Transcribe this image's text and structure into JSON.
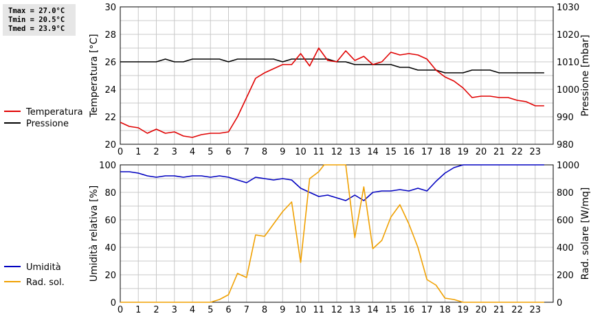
{
  "stats": {
    "tmax": "Tmax = 27.0°C",
    "tmin": "Tmin = 20.5°C",
    "tmed": "Tmed = 23.9°C"
  },
  "colors": {
    "temperature": "#e00000",
    "pressure": "#000000",
    "humidity": "#0000c0",
    "radiation": "#f0a000",
    "grid": "#c8c8c8"
  },
  "chart_data": [
    {
      "type": "line",
      "x_ticks": [
        "0",
        "1",
        "2",
        "3",
        "4",
        "5",
        "6",
        "7",
        "8",
        "9",
        "10",
        "11",
        "12",
        "13",
        "14",
        "15",
        "16",
        "17",
        "18",
        "19",
        "20",
        "21",
        "22",
        "23"
      ],
      "xlim": [
        0,
        24
      ],
      "ylabel": "Temperatura [°C]",
      "ylim": [
        20,
        30
      ],
      "y_ticks": [
        "20",
        "22",
        "24",
        "26",
        "28",
        "30"
      ],
      "ylabel_right": "Pressione [mbar]",
      "ylim_right": [
        980,
        1030
      ],
      "y_ticks_right": [
        "980",
        "990",
        "1000",
        "1010",
        "1020",
        "1030"
      ],
      "grid": true,
      "legend_position": "left",
      "series": [
        {
          "name": "Temperatura",
          "axis": "left",
          "x": [
            0,
            0.5,
            1,
            1.5,
            2,
            2.5,
            3,
            3.5,
            4,
            4.5,
            5,
            5.5,
            6,
            6.5,
            7,
            7.5,
            8,
            8.5,
            9,
            9.5,
            10,
            10.5,
            11,
            11.5,
            12,
            12.5,
            13,
            13.5,
            14,
            14.5,
            15,
            15.5,
            16,
            16.5,
            17,
            17.5,
            18,
            18.5,
            19,
            19.5,
            20,
            20.5,
            21,
            21.5,
            22,
            22.5,
            23,
            23.5
          ],
          "y": [
            21.6,
            21.3,
            21.2,
            20.8,
            21.1,
            20.8,
            20.9,
            20.6,
            20.5,
            20.7,
            20.8,
            20.8,
            20.9,
            22.0,
            23.4,
            24.8,
            25.2,
            25.5,
            25.8,
            25.8,
            26.6,
            25.7,
            27.0,
            26.1,
            26.0,
            26.8,
            26.1,
            26.4,
            25.8,
            26.0,
            26.7,
            26.5,
            26.6,
            26.5,
            26.2,
            25.4,
            24.9,
            24.6,
            24.1,
            23.4,
            23.5,
            23.5,
            23.4,
            23.4,
            23.2,
            23.1,
            22.8,
            22.8
          ]
        },
        {
          "name": "Pressione",
          "axis": "right",
          "x": [
            0,
            0.5,
            1,
            1.5,
            2,
            2.5,
            3,
            3.5,
            4,
            4.5,
            5,
            5.5,
            6,
            6.5,
            7,
            7.5,
            8,
            8.5,
            9,
            9.5,
            10,
            10.5,
            11,
            11.5,
            12,
            12.5,
            13,
            13.5,
            14,
            14.5,
            15,
            15.5,
            16,
            16.5,
            17,
            17.5,
            18,
            18.5,
            19,
            19.5,
            20,
            20.5,
            21,
            21.5,
            22,
            22.5,
            23,
            23.5
          ],
          "y": [
            1010,
            1010,
            1010,
            1010,
            1010,
            1011,
            1010,
            1010,
            1011,
            1011,
            1011,
            1011,
            1010,
            1011,
            1011,
            1011,
            1011,
            1011,
            1010,
            1011,
            1011,
            1011,
            1011,
            1011,
            1010,
            1010,
            1009,
            1009,
            1009,
            1009,
            1009,
            1008,
            1008,
            1007,
            1007,
            1007,
            1006,
            1006,
            1006,
            1007,
            1007,
            1007,
            1006,
            1006,
            1006,
            1006,
            1006,
            1006
          ]
        }
      ]
    },
    {
      "type": "line",
      "x_ticks": [
        "0",
        "1",
        "2",
        "3",
        "4",
        "5",
        "6",
        "7",
        "8",
        "9",
        "10",
        "11",
        "12",
        "13",
        "14",
        "15",
        "16",
        "17",
        "18",
        "19",
        "20",
        "21",
        "22",
        "23"
      ],
      "xlim": [
        0,
        24
      ],
      "ylabel": "Umidità relativa [%]",
      "ylim": [
        0,
        100
      ],
      "y_ticks": [
        "0",
        "20",
        "40",
        "60",
        "80",
        "100"
      ],
      "ylabel_right": "Rad. solare [W/mq]",
      "ylim_right": [
        0,
        1000
      ],
      "y_ticks_right": [
        "0",
        "200",
        "400",
        "600",
        "800",
        "1000"
      ],
      "grid": true,
      "legend_position": "left",
      "series": [
        {
          "name": "Umidità",
          "axis": "left",
          "x": [
            0,
            0.5,
            1,
            1.5,
            2,
            2.5,
            3,
            3.5,
            4,
            4.5,
            5,
            5.5,
            6,
            6.5,
            7,
            7.5,
            8,
            8.5,
            9,
            9.5,
            10,
            10.5,
            11,
            11.5,
            12,
            12.5,
            13,
            13.5,
            14,
            14.5,
            15,
            15.5,
            16,
            16.5,
            17,
            17.5,
            18,
            18.5,
            19,
            19.5,
            20,
            20.5,
            21,
            21.5,
            22,
            22.5,
            23,
            23.5
          ],
          "y": [
            95,
            95,
            94,
            92,
            91,
            92,
            92,
            91,
            92,
            92,
            91,
            92,
            91,
            89,
            87,
            91,
            90,
            89,
            90,
            89,
            83,
            80,
            77,
            78,
            76,
            74,
            78,
            74,
            80,
            81,
            81,
            82,
            81,
            83,
            81,
            88,
            94,
            98,
            100,
            100,
            100,
            100,
            100,
            100,
            100,
            100,
            100,
            100
          ]
        },
        {
          "name": "Rad. sol.",
          "axis": "right",
          "x": [
            0,
            0.5,
            1,
            1.5,
            2,
            2.5,
            3,
            3.5,
            4,
            4.5,
            5,
            5.5,
            6,
            6.5,
            7,
            7.5,
            8,
            8.5,
            9,
            9.5,
            10,
            10.5,
            11,
            11.3,
            12.5,
            13,
            13.5,
            14,
            14.5,
            15,
            15.5,
            16,
            16.5,
            17,
            17.5,
            18,
            18.5,
            19,
            19.5,
            20,
            20.5,
            21,
            21.5,
            22,
            22.5,
            23,
            23.5
          ],
          "y": [
            0,
            0,
            0,
            0,
            0,
            0,
            0,
            0,
            0,
            0,
            0,
            20,
            55,
            210,
            180,
            490,
            480,
            570,
            660,
            730,
            290,
            900,
            950,
            1000,
            1000,
            470,
            840,
            390,
            450,
            620,
            710,
            570,
            400,
            165,
            125,
            30,
            20,
            0,
            0,
            0,
            0,
            0,
            0,
            0,
            0,
            0,
            0
          ]
        }
      ]
    }
  ]
}
